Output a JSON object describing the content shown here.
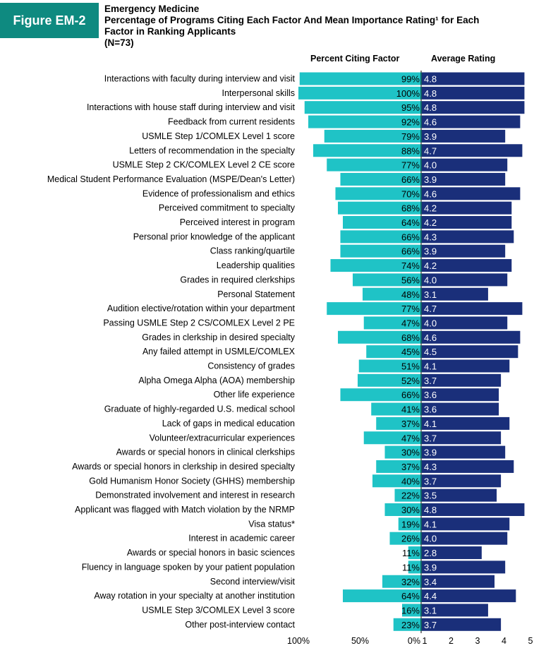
{
  "figure_label": "Figure EM-2",
  "header": {
    "line1": "Emergency Medicine",
    "line2": "Percentage of Programs Citing Each Factor And Mean Importance Rating¹ for Each",
    "line3": "Factor in Ranking Applicants",
    "line4": "(N=73)"
  },
  "columns": {
    "left": "Percent Citing Factor",
    "right": "Average Rating"
  },
  "colors": {
    "badge": "#0e8a80",
    "percent_bar": "#1fc3c6",
    "rating_bar": "#1a2f7a"
  },
  "chart_data": {
    "type": "bar",
    "orientation": "horizontal",
    "categories": [
      "Interactions with faculty during interview and visit",
      "Interpersonal skills",
      "Interactions with house staff during interview and visit",
      "Feedback from current residents",
      "USMLE Step 1/COMLEX Level 1 score",
      "Letters of recommendation in the specialty",
      "USMLE Step 2 CK/COMLEX Level 2 CE score",
      "Medical Student Performance Evaluation (MSPE/Dean's Letter)",
      "Evidence of professionalism and ethics",
      "Perceived commitment to specialty",
      "Perceived interest in program",
      "Personal prior knowledge of the applicant",
      "Class ranking/quartile",
      "Leadership qualities",
      "Grades in required clerkships",
      "Personal Statement",
      "Audition elective/rotation within your department",
      "Passing USMLE Step 2 CS/COMLEX Level 2 PE",
      "Grades in clerkship in desired specialty",
      "Any failed attempt in USMLE/COMLEX",
      "Consistency of grades",
      "Alpha Omega Alpha (AOA) membership",
      "Other life experience",
      "Graduate of highly-regarded U.S. medical school",
      "Lack of gaps in medical education",
      "Volunteer/extracurricular experiences",
      "Awards or special honors in clinical clerkships",
      "Awards or special honors in clerkship in desired specialty",
      "Gold Humanism Honor Society (GHHS) membership",
      "Demonstrated involvement and interest in research",
      "Applicant was flagged with Match violation by the NRMP",
      "Visa status*",
      "Interest in academic career",
      "Awards or special honors in basic sciences",
      "Fluency in language spoken by your patient population",
      "Second interview/visit",
      "Away rotation in your specialty at another institution",
      "USMLE Step 3/COMLEX Level 3 score",
      "Other post-interview contact"
    ],
    "series": [
      {
        "name": "Percent Citing Factor",
        "values": [
          99,
          100,
          95,
          92,
          79,
          88,
          77,
          66,
          70,
          68,
          64,
          66,
          66,
          74,
          56,
          48,
          77,
          47,
          68,
          45,
          51,
          52,
          66,
          41,
          37,
          47,
          30,
          37,
          40,
          22,
          30,
          19,
          26,
          11,
          11,
          32,
          64,
          16,
          23
        ],
        "labels": [
          "99%",
          "100%",
          "95%",
          "92%",
          "79%",
          "88%",
          "77%",
          "66%",
          "70%",
          "68%",
          "64%",
          "66%",
          "66%",
          "74%",
          "56%",
          "48%",
          "77%",
          "47%",
          "68%",
          "45%",
          "51%",
          "52%",
          "66%",
          "41%",
          "37%",
          "47%",
          "30%",
          "37%",
          "40%",
          "22%",
          "30%",
          "19%",
          "26%",
          "11%",
          "11%",
          "32%",
          "64%",
          "16%",
          "23%"
        ]
      },
      {
        "name": "Average Rating",
        "values": [
          4.8,
          4.8,
          4.8,
          4.6,
          3.9,
          4.7,
          4.0,
          3.9,
          4.6,
          4.2,
          4.2,
          4.3,
          3.9,
          4.2,
          4.0,
          3.1,
          4.7,
          4.0,
          4.6,
          4.5,
          4.1,
          3.7,
          3.6,
          3.6,
          4.1,
          3.7,
          3.9,
          4.3,
          3.7,
          3.5,
          4.8,
          4.1,
          4.0,
          2.8,
          3.9,
          3.4,
          4.4,
          3.1,
          3.7
        ],
        "labels": [
          "4.8",
          "4.8",
          "4.8",
          "4.6",
          "3.9",
          "4.7",
          "4.0",
          "3.9",
          "4.6",
          "4.2",
          "4.2",
          "4.3",
          "3.9",
          "4.2",
          "4.0",
          "3.1",
          "4.7",
          "4.0",
          "4.6",
          "4.5",
          "4.1",
          "3.7",
          "3.6",
          "3.6",
          "4.1",
          "3.7",
          "3.9",
          "4.3",
          "3.7",
          "3.5",
          "4.8",
          "4.1",
          "4.0",
          "2.8",
          "3.9",
          "3.4",
          "4.4",
          "3.1",
          "3.7"
        ]
      }
    ],
    "percent_axis": {
      "range": [
        100,
        0
      ],
      "ticks": [
        "100%",
        "50%",
        "0%"
      ]
    },
    "rating_axis": {
      "range": [
        1,
        5
      ],
      "ticks": [
        "1",
        "2",
        "3",
        "4",
        "5"
      ]
    },
    "grid": false
  }
}
